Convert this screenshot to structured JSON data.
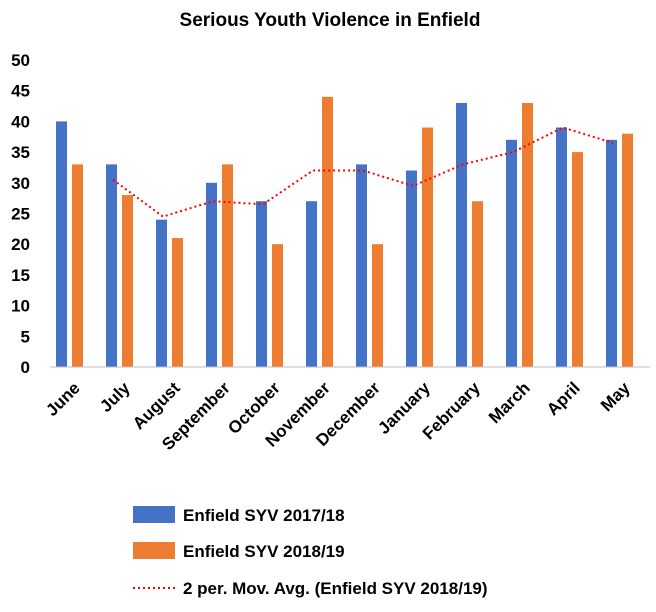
{
  "chart_data": {
    "type": "bar",
    "title": "Serious Youth Violence in Enfield",
    "categories": [
      "June",
      "July",
      "August",
      "September",
      "October",
      "November",
      "December",
      "January",
      "February",
      "March",
      "April",
      "May"
    ],
    "series": [
      {
        "name": "Enfield SYV 2017/18",
        "color": "#4472C4",
        "values": [
          40,
          33,
          24,
          30,
          27,
          27,
          33,
          32,
          43,
          37,
          39,
          37
        ]
      },
      {
        "name": "Enfield SYV 2018/19",
        "color": "#ED7D31",
        "values": [
          33,
          28,
          21,
          33,
          20,
          44,
          20,
          39,
          27,
          43,
          35,
          38
        ]
      }
    ],
    "trendline": {
      "name": "2 per. Mov. Avg. (Enfield SYV 2018/19)",
      "color": "#FF0000",
      "style": "dotted",
      "values": [
        null,
        30.5,
        24.5,
        27,
        26.5,
        32,
        32,
        29.5,
        33,
        35,
        39,
        36.5
      ]
    },
    "ylim": [
      0,
      50
    ],
    "yticks": [
      0,
      5,
      10,
      15,
      20,
      25,
      30,
      35,
      40,
      45,
      50
    ],
    "xlabel": "",
    "ylabel": "",
    "grid": false,
    "legend_position": "bottom"
  }
}
